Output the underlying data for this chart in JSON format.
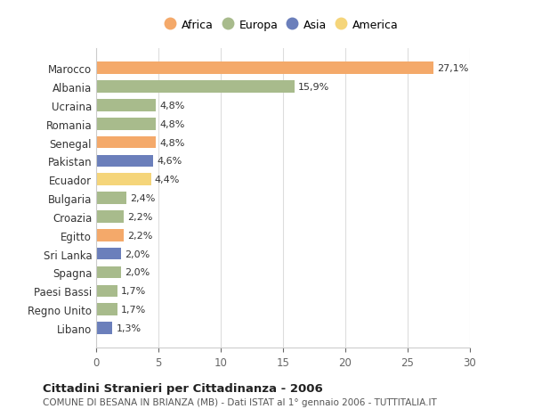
{
  "countries": [
    "Marocco",
    "Albania",
    "Ucraina",
    "Romania",
    "Senegal",
    "Pakistan",
    "Ecuador",
    "Bulgaria",
    "Croazia",
    "Egitto",
    "Sri Lanka",
    "Spagna",
    "Paesi Bassi",
    "Regno Unito",
    "Libano"
  ],
  "values": [
    27.1,
    15.9,
    4.8,
    4.8,
    4.8,
    4.6,
    4.4,
    2.4,
    2.2,
    2.2,
    2.0,
    2.0,
    1.7,
    1.7,
    1.3
  ],
  "labels": [
    "27,1%",
    "15,9%",
    "4,8%",
    "4,8%",
    "4,8%",
    "4,6%",
    "4,4%",
    "2,4%",
    "2,2%",
    "2,2%",
    "2,0%",
    "2,0%",
    "1,7%",
    "1,7%",
    "1,3%"
  ],
  "continents": [
    "Africa",
    "Europa",
    "Europa",
    "Europa",
    "Africa",
    "Asia",
    "America",
    "Europa",
    "Europa",
    "Africa",
    "Asia",
    "Europa",
    "Europa",
    "Europa",
    "Asia"
  ],
  "continent_colors": {
    "Africa": "#F4A96A",
    "Europa": "#A8BB8C",
    "Asia": "#6B7FBB",
    "America": "#F5D57A"
  },
  "legend_order": [
    "Africa",
    "Europa",
    "Asia",
    "America"
  ],
  "title": "Cittadini Stranieri per Cittadinanza - 2006",
  "subtitle": "COMUNE DI BESANA IN BRIANZA (MB) - Dati ISTAT al 1° gennaio 2006 - TUTTITALIA.IT",
  "xlim": [
    0,
    30
  ],
  "xticks": [
    0,
    5,
    10,
    15,
    20,
    25,
    30
  ],
  "background_color": "#ffffff",
  "grid_color": "#dddddd"
}
